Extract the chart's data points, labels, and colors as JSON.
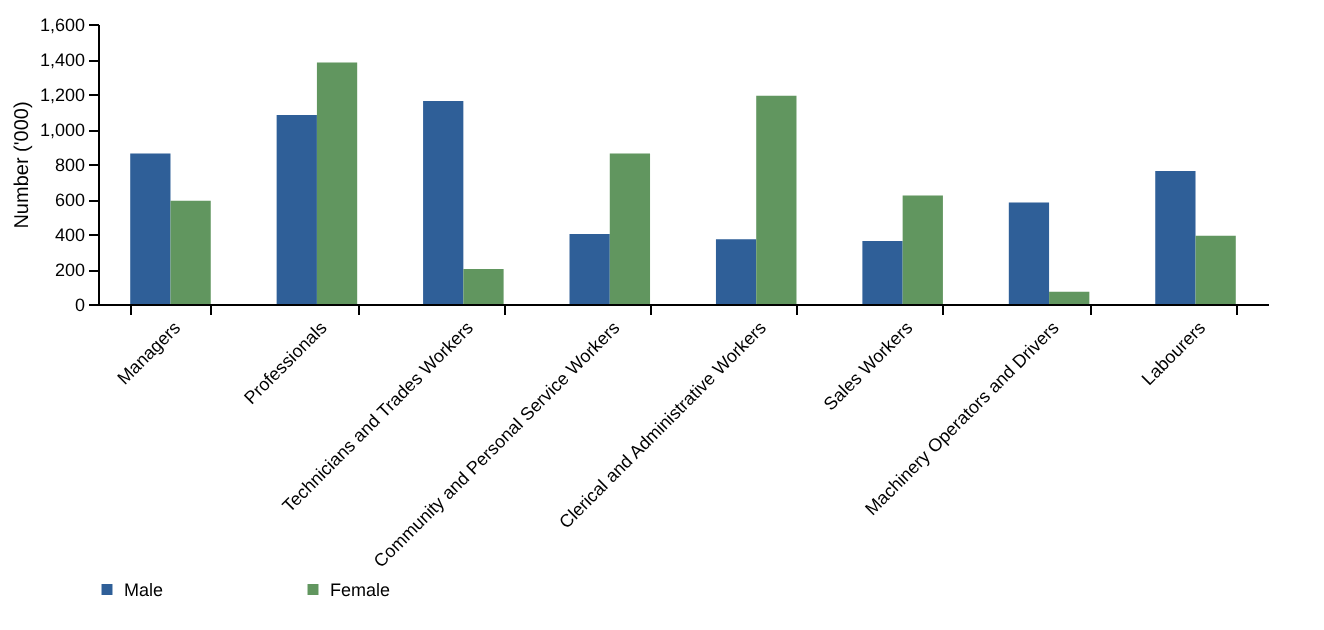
{
  "chart_data": {
    "type": "bar",
    "ylabel": "Number ('000)",
    "categories": [
      "Managers",
      "Professionals",
      "Technicians and Trades Workers",
      "Community and Personal Service Workers",
      "Clerical and Administrative Workers",
      "Sales Workers",
      "Machinery Operators and Drivers",
      "Labourers"
    ],
    "series": [
      {
        "name": "Male",
        "color": "#2f5f98",
        "values": [
          860,
          1080,
          1160,
          400,
          370,
          360,
          580,
          760
        ]
      },
      {
        "name": "Female",
        "color": "#61965f",
        "values": [
          590,
          1380,
          200,
          860,
          1190,
          620,
          70,
          390
        ]
      }
    ],
    "ylim": [
      0,
      1600
    ],
    "yticks": [
      0,
      200,
      400,
      600,
      800,
      {
        "value": 1000,
        "label": "1,000"
      },
      {
        "value": 1200,
        "label": "1,200"
      },
      {
        "value": 1400,
        "label": "1,400"
      },
      {
        "value": 1600,
        "label": "1,600"
      }
    ],
    "grid": false,
    "legend": "bottom"
  }
}
